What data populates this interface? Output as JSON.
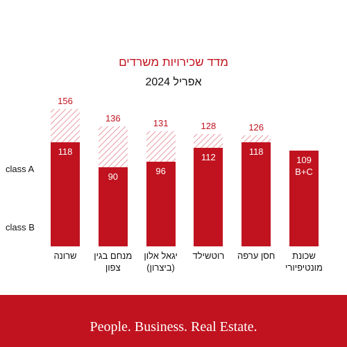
{
  "chart_data": {
    "type": "bar",
    "title": "מדד שכירויות משרדים",
    "subtitle": "אפריל 2024",
    "categories": [
      "שרונה",
      "מנחם בגין צפון",
      "יגאל אלון (ביצרון)",
      "רוטשילד",
      "חסן ערפה",
      "שכונת מונטיפיורי"
    ],
    "series": [
      {
        "name": "class A",
        "color": "#c0131f",
        "values": [
          156,
          136,
          131,
          128,
          126,
          null
        ]
      },
      {
        "name": "class B",
        "color": "#c0131f",
        "values": [
          118,
          90,
          96,
          112,
          118,
          109
        ],
        "value_labels": [
          "118",
          "90",
          "96",
          "112",
          "118",
          "109 B+C"
        ]
      }
    ]
  },
  "footer": "People. Business. Real Estate."
}
